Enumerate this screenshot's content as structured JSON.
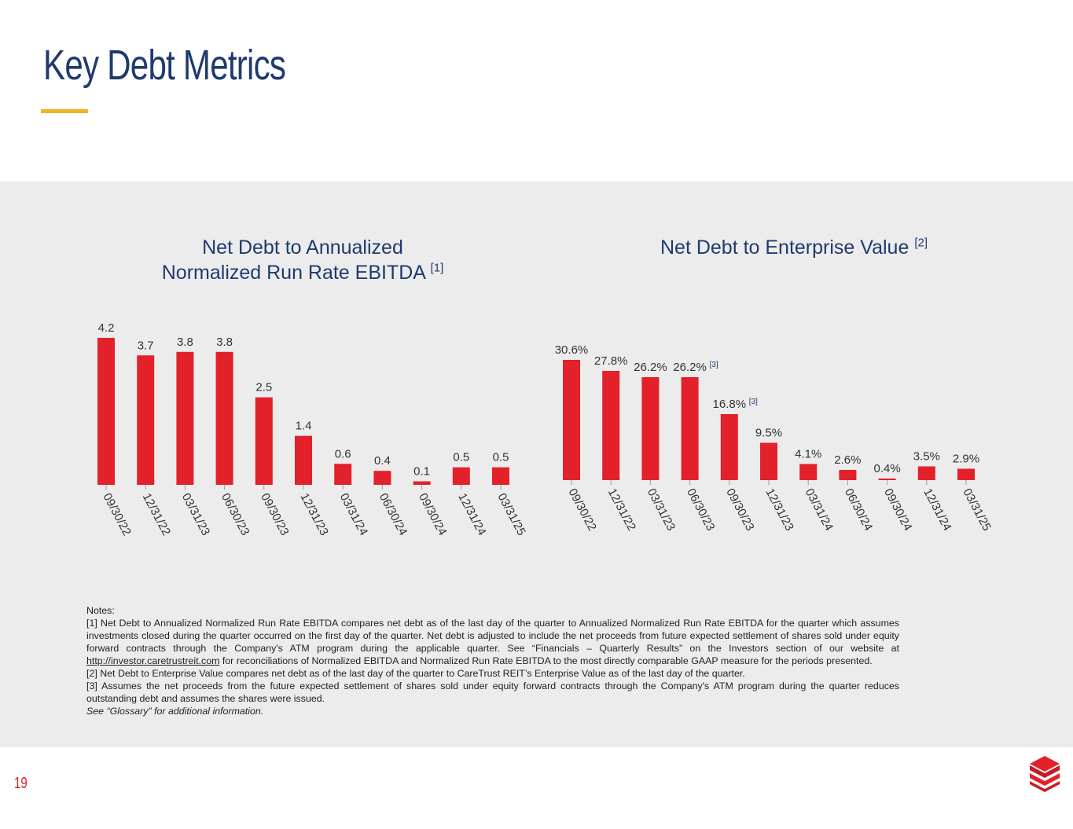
{
  "page": {
    "title": "Key Debt Metrics",
    "page_number": "19"
  },
  "chart_data": [
    {
      "type": "bar",
      "title": "Net Debt to Annualized Normalized Run Rate EBITDA",
      "title_line1": "Net Debt to Annualized",
      "title_line2": "Normalized Run Rate EBITDA",
      "footnote_ref": "[1]",
      "categories": [
        "09/30/22",
        "12/31/22",
        "03/31/23",
        "06/30/23",
        "09/30/23",
        "12/31/23",
        "03/31/24",
        "06/30/24",
        "09/30/24",
        "12/31/24",
        "03/31/25"
      ],
      "values": [
        4.2,
        3.7,
        3.8,
        3.8,
        2.5,
        1.4,
        0.6,
        0.4,
        0.1,
        0.5,
        0.5
      ],
      "labels": [
        "4.2",
        "3.7",
        "3.8",
        "3.8",
        "2.5",
        "1.4",
        "0.6",
        "0.4",
        "0.1",
        "0.5",
        "0.5"
      ],
      "bar_annotations": {},
      "ylim": [
        0,
        4.2
      ],
      "xlabel": "",
      "ylabel": "",
      "color": "#e3212b"
    },
    {
      "type": "bar",
      "title": "Net Debt to Enterprise Value",
      "title_line1": "Net Debt to Enterprise Value",
      "title_line2": "",
      "footnote_ref": "[2]",
      "categories": [
        "09/30/22",
        "12/31/22",
        "03/31/23",
        "06/30/23",
        "09/30/23",
        "12/31/23",
        "03/31/24",
        "06/30/24",
        "09/30/24",
        "12/31/24",
        "03/31/25"
      ],
      "values": [
        30.6,
        27.8,
        26.2,
        26.2,
        16.8,
        9.5,
        4.1,
        2.6,
        0.4,
        3.5,
        2.9
      ],
      "labels": [
        "30.6%",
        "27.8%",
        "26.2%",
        "26.2%",
        "16.8%",
        "9.5%",
        "4.1%",
        "2.6%",
        "0.4%",
        "3.5%",
        "2.9%"
      ],
      "bar_annotations": {
        "3": "[3]",
        "4": "[3]"
      },
      "ylim": [
        0,
        30.6
      ],
      "xlabel": "",
      "ylabel": "",
      "color": "#e3212b"
    }
  ],
  "notes": {
    "heading": "Notes:",
    "note1_before_link": "[1] Net Debt to Annualized Normalized Run Rate EBITDA compares net debt as of the last day of the quarter to Annualized Normalized Run Rate EBITDA for the quarter which assumes investments closed during the quarter occurred on the first day of the quarter. Net debt is adjusted to include the net proceeds from future expected settlement of shares sold under equity forward contracts through the Company's ATM program during the applicable quarter. See “Financials – Quarterly Results” on the Investors section of our website at ",
    "note1_link": "http://investor.caretrustreit.com",
    "note1_after_link": " for reconciliations of Normalized EBITDA and Normalized Run Rate EBITDA to the most directly comparable GAAP measure for the periods presented.",
    "note2": "[2] Net Debt to Enterprise Value compares net debt as of the last day of the quarter to CareTrust REIT’s Enterprise Value as of the last day of the quarter.",
    "note3": "[3] Assumes the net proceeds from the future expected settlement of shares sold under equity forward contracts through the Company's ATM program during the quarter reduces outstanding debt and assumes the shares were issued.",
    "glossary": "See “Glossary” for additional information."
  },
  "colors": {
    "brand_blue": "#1f3a6e",
    "brand_red": "#e3212b",
    "accent_gold": "#f0b323",
    "panel_bg": "#ececec"
  },
  "logo": {
    "icon": "caretrust-logo-icon"
  }
}
